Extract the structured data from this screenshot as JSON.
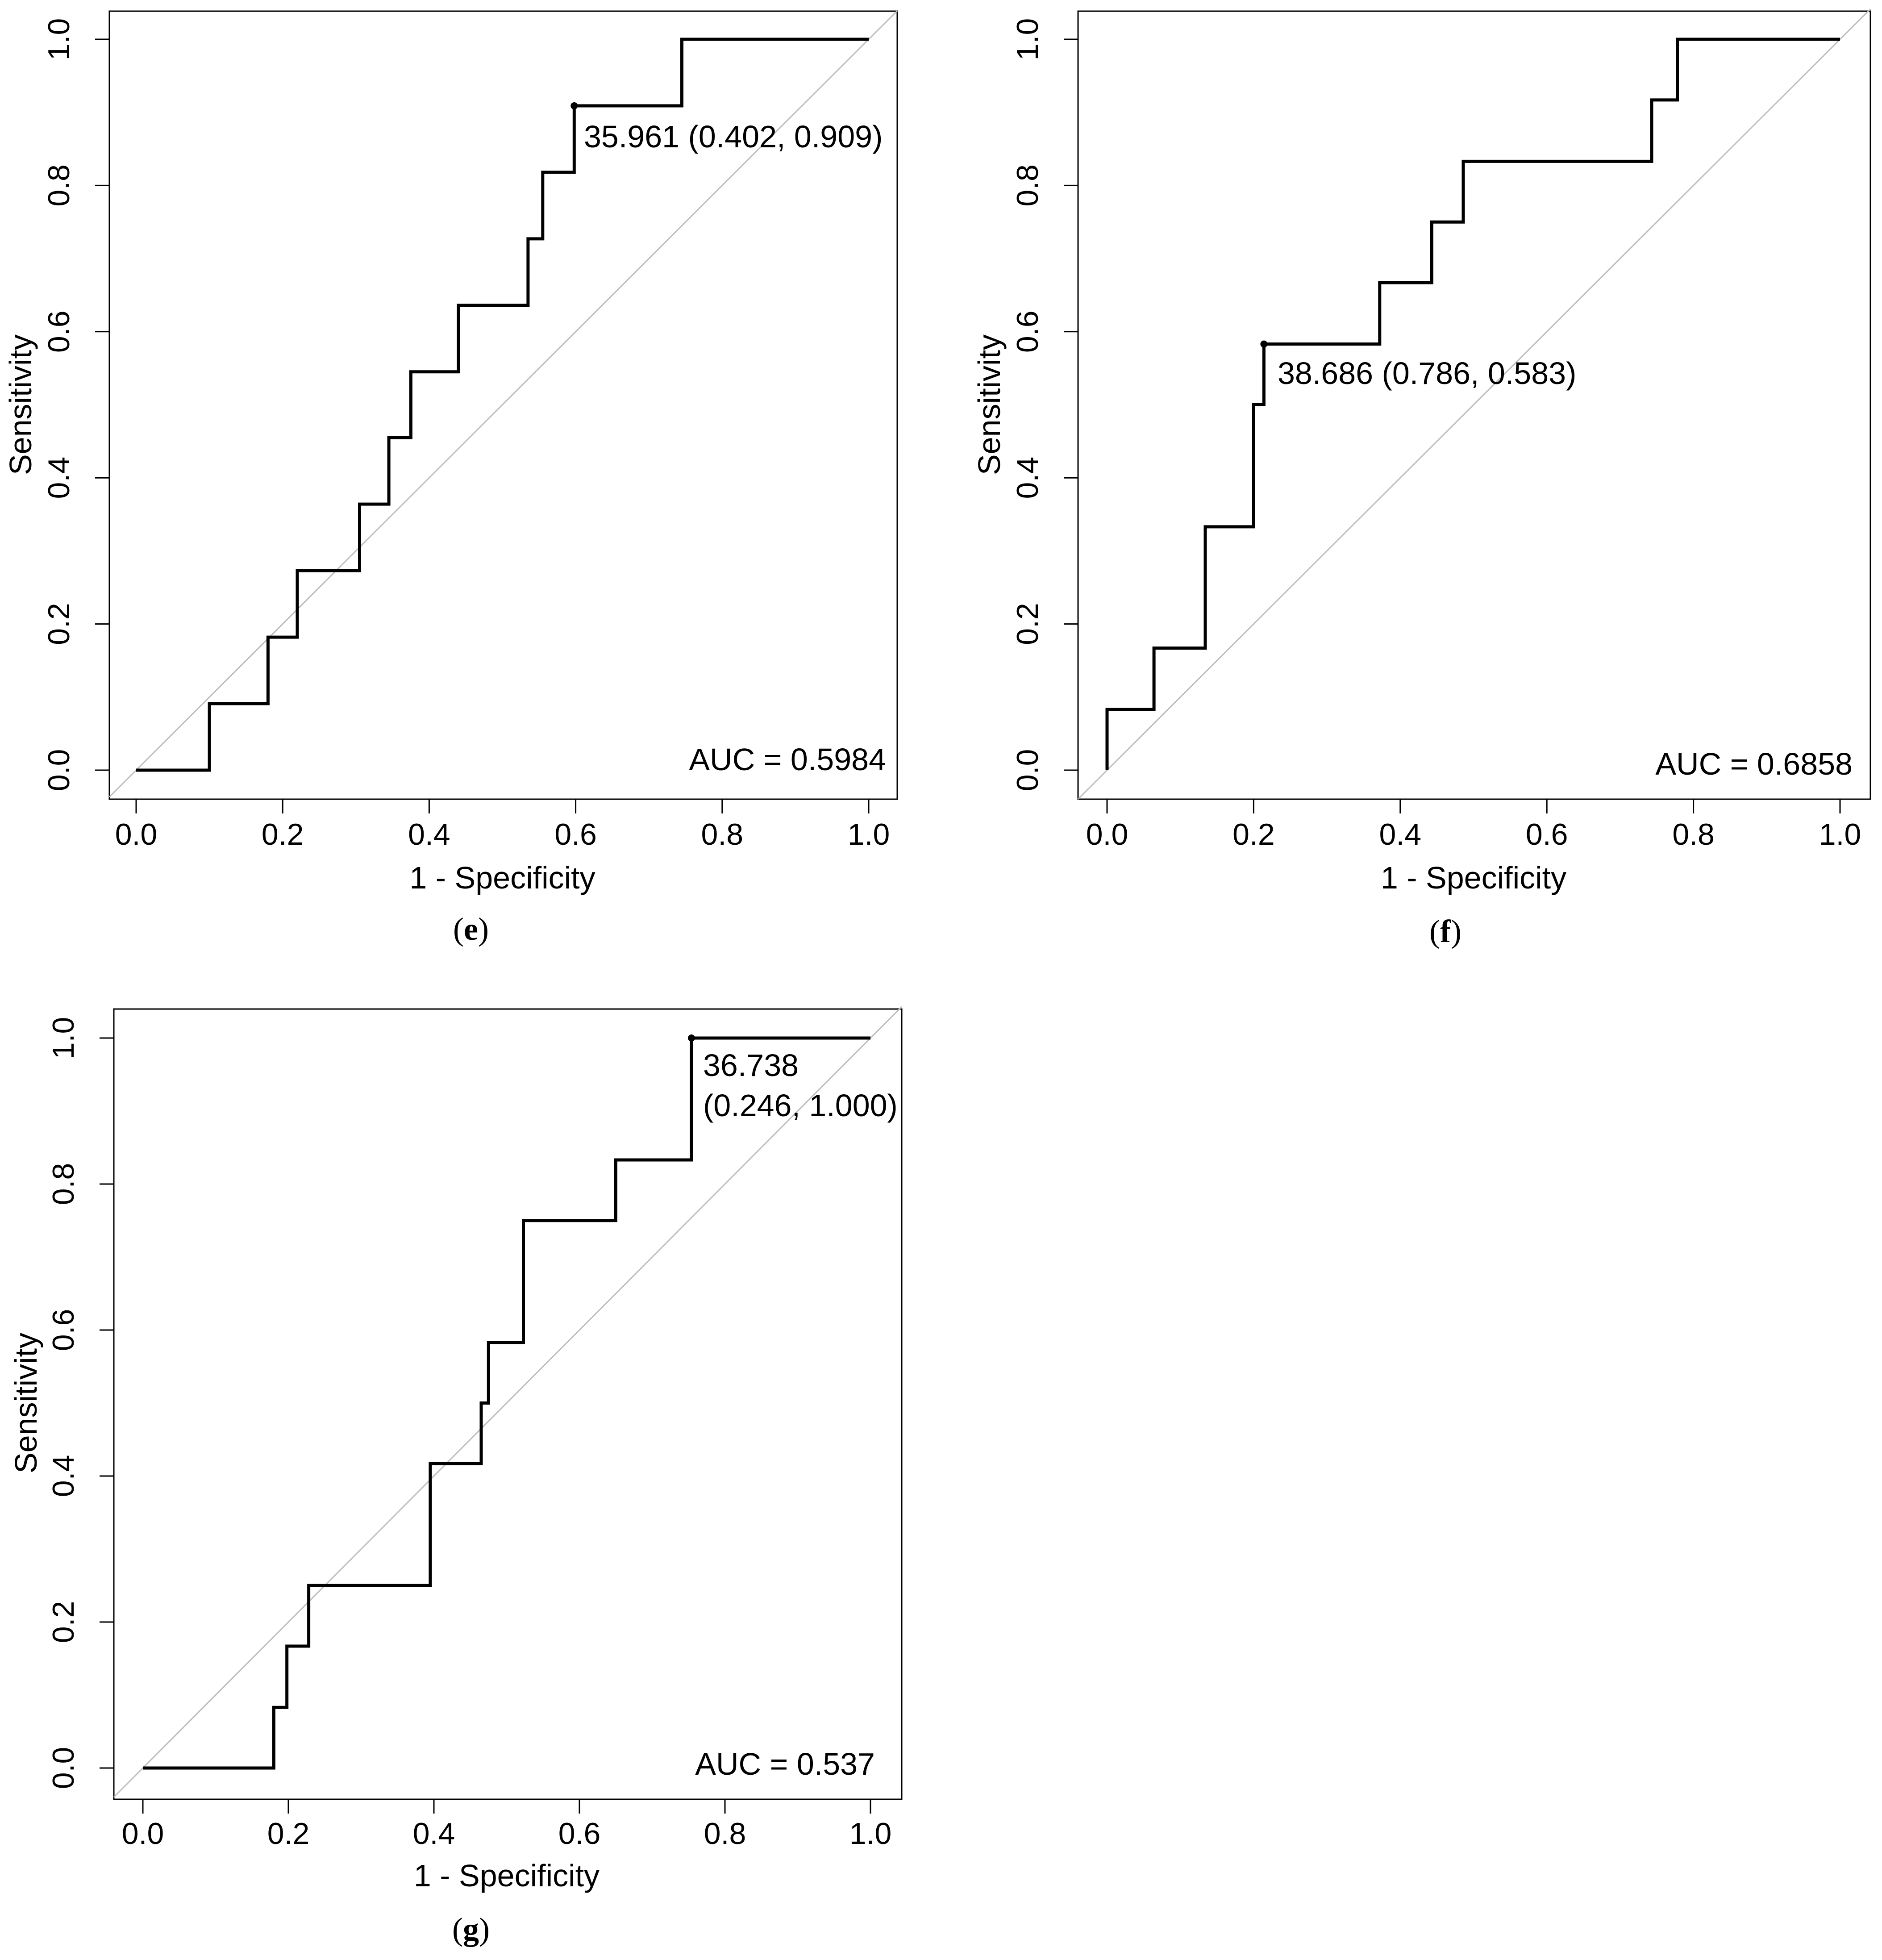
{
  "chart_data": [
    {
      "type": "line",
      "panel": "e",
      "caption": "e",
      "xlabel": "1 - Specificity",
      "ylabel": "Sensitivity",
      "xlim": [
        0,
        1
      ],
      "ylim": [
        0,
        1
      ],
      "xticks": [
        "0.0",
        "0.2",
        "0.4",
        "0.6",
        "0.8",
        "1.0"
      ],
      "yticks": [
        "0.0",
        "0.2",
        "0.4",
        "0.6",
        "0.8",
        "1.0"
      ],
      "auc_label": "AUC = 0.5984",
      "threshold_label": [
        "35.961 (0.402, 0.909)"
      ],
      "threshold_point": [
        0.598,
        0.909
      ],
      "series": [
        {
          "name": "ROC",
          "x": [
            0,
            0.1,
            0.1,
            0.18,
            0.18,
            0.22,
            0.22,
            0.305,
            0.305,
            0.345,
            0.345,
            0.375,
            0.375,
            0.44,
            0.44,
            0.535,
            0.535,
            0.555,
            0.555,
            0.598,
            0.598,
            0.745,
            0.745,
            1.0
          ],
          "y": [
            0,
            0,
            0.091,
            0.091,
            0.182,
            0.182,
            0.273,
            0.273,
            0.364,
            0.364,
            0.455,
            0.455,
            0.545,
            0.545,
            0.636,
            0.636,
            0.727,
            0.727,
            0.818,
            0.818,
            0.909,
            0.909,
            1.0,
            1.0
          ]
        }
      ]
    },
    {
      "type": "line",
      "panel": "f",
      "caption": "f",
      "xlabel": "1 - Specificity",
      "ylabel": "Sensitivity",
      "xlim": [
        0,
        1
      ],
      "ylim": [
        0,
        1
      ],
      "xticks": [
        "0.0",
        "0.2",
        "0.4",
        "0.6",
        "0.8",
        "1.0"
      ],
      "yticks": [
        "0.0",
        "0.2",
        "0.4",
        "0.6",
        "0.8",
        "1.0"
      ],
      "auc_label": "AUC = 0.6858",
      "threshold_label": [
        "38.686 (0.786, 0.583)"
      ],
      "threshold_point": [
        0.214,
        0.583
      ],
      "series": [
        {
          "name": "ROC",
          "x": [
            0,
            0,
            0.064,
            0.064,
            0.134,
            0.134,
            0.2,
            0.2,
            0.214,
            0.214,
            0.372,
            0.372,
            0.443,
            0.443,
            0.486,
            0.486,
            0.743,
            0.743,
            0.778,
            0.778,
            1.0
          ],
          "y": [
            0,
            0.083,
            0.083,
            0.167,
            0.167,
            0.333,
            0.333,
            0.5,
            0.5,
            0.583,
            0.583,
            0.667,
            0.667,
            0.75,
            0.75,
            0.833,
            0.833,
            0.917,
            0.917,
            1.0,
            1.0
          ]
        }
      ]
    },
    {
      "type": "line",
      "panel": "g",
      "caption": "g",
      "xlabel": "1 - Specificity",
      "ylabel": "Sensitivity",
      "xlim": [
        0,
        1
      ],
      "ylim": [
        0,
        1
      ],
      "xticks": [
        "0.0",
        "0.2",
        "0.4",
        "0.6",
        "0.8",
        "1.0"
      ],
      "yticks": [
        "0.0",
        "0.2",
        "0.4",
        "0.6",
        "0.8",
        "1.0"
      ],
      "auc_label": "AUC = 0.537",
      "threshold_label": [
        "36.738",
        "(0.246, 1.000)"
      ],
      "threshold_point": [
        0.754,
        1.0
      ],
      "series": [
        {
          "name": "ROC",
          "x": [
            0,
            0.18,
            0.18,
            0.198,
            0.198,
            0.228,
            0.228,
            0.395,
            0.395,
            0.465,
            0.465,
            0.475,
            0.475,
            0.523,
            0.523,
            0.65,
            0.65,
            0.754,
            0.754,
            1.0
          ],
          "y": [
            0,
            0,
            0.083,
            0.083,
            0.167,
            0.167,
            0.25,
            0.25,
            0.417,
            0.417,
            0.5,
            0.5,
            0.583,
            0.583,
            0.75,
            0.75,
            0.833,
            0.833,
            1.0,
            1.0
          ]
        }
      ]
    }
  ]
}
